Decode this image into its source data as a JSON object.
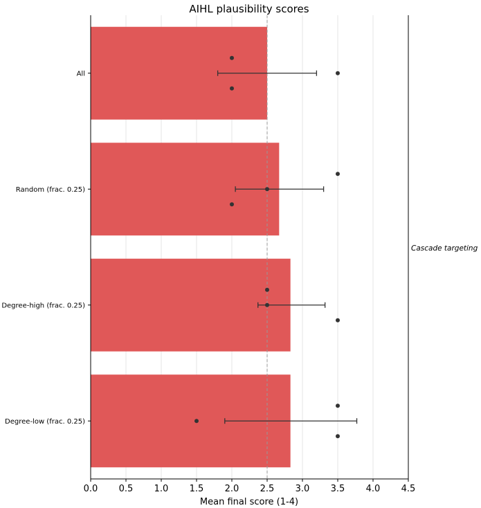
{
  "chart_data": {
    "type": "bar",
    "orientation": "horizontal",
    "title": "AIHL plausibility scores",
    "xlabel": "Mean final score (1-4)",
    "ylabel": "",
    "side_label": "Cascade targeting",
    "xlim": [
      0.0,
      4.5
    ],
    "xticks": [
      "0.0",
      "0.5",
      "1.0",
      "1.5",
      "2.0",
      "2.5",
      "3.0",
      "3.5",
      "4.0",
      "4.5"
    ],
    "reference_line_x": 2.5,
    "grid": "vertical",
    "bar_color": "#e05858",
    "categories": [
      "All",
      "Random (frac. 0.25)",
      "Degree-high (frac. 0.25)",
      "Degree-low (frac. 0.25)"
    ],
    "values": [
      2.5,
      2.67,
      2.83,
      2.83
    ],
    "error_low": [
      1.8,
      2.05,
      2.37,
      1.9
    ],
    "error_high": [
      3.2,
      3.3,
      3.32,
      3.77
    ],
    "points": [
      [
        2.0,
        3.5,
        2.0
      ],
      [
        3.5,
        2.5,
        2.0
      ],
      [
        2.5,
        2.5,
        3.5
      ],
      [
        3.5,
        1.5,
        3.5
      ]
    ]
  }
}
